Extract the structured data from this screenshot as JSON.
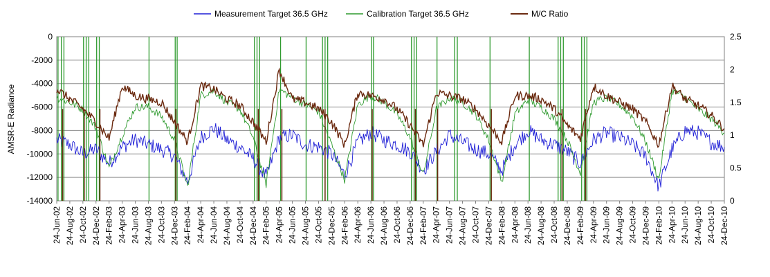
{
  "chart_data": {
    "type": "line",
    "title": "",
    "ylabel": "AMSR-E Radiance",
    "y2label": "",
    "ylim": [
      -14000,
      0
    ],
    "y2lim": [
      0,
      2.5
    ],
    "yticks": [
      "0",
      "-2000",
      "-4000",
      "-6000",
      "-8000",
      "-10000",
      "-12000",
      "-14000"
    ],
    "y2ticks": [
      "2.5",
      "2",
      "1.5",
      "1",
      "0.5",
      "0"
    ],
    "grid": "horizontal",
    "legend_position": "top",
    "x_dates": [
      "24-Jun-02",
      "24-Aug-02",
      "24-Oct-02",
      "24-Dec-02",
      "24-Feb-03",
      "24-Apr-03",
      "24-Jun-03",
      "24-Aug-03",
      "24-Oct-03",
      "24-Dec-03",
      "24-Feb-04",
      "24-Apr-04",
      "24-Jun-04",
      "24-Aug-04",
      "24-Oct-04",
      "24-Dec-04",
      "24-Feb-05",
      "24-Apr-05",
      "24-Jun-05",
      "24-Aug-05",
      "24-Oct-05",
      "24-Dec-05",
      "24-Feb-06",
      "24-Apr-06",
      "24-Jun-06",
      "24-Aug-06",
      "24-Oct-06",
      "24-Dec-06",
      "24-Feb-07",
      "24-Apr-07",
      "24-Jun-07",
      "24-Aug-07",
      "24-Oct-07",
      "24-Dec-07",
      "24-Feb-08",
      "24-Apr-08",
      "24-Jun-08",
      "24-Aug-08",
      "24-Oct-08",
      "24-Dec-08",
      "24-Feb-09",
      "24-Apr-09",
      "24-Jun-09",
      "24-Aug-09",
      "24-Oct-09",
      "24-Dec-09",
      "24-Feb-10",
      "24-Apr-10",
      "24-Jun-10",
      "24-Aug-10",
      "24-Oct-10",
      "24-Dec-10"
    ],
    "series": [
      {
        "name": "Measurement Target 36.5 GHz",
        "axis": "left",
        "color": "#1f1fd6",
        "values": [
          -8800,
          -9200,
          -10000,
          -9600,
          -10800,
          -9400,
          -8800,
          -9200,
          -9600,
          -10200,
          -12400,
          -8600,
          -7800,
          -8800,
          -9400,
          -10400,
          -12000,
          -8600,
          -8400,
          -9200,
          -9400,
          -10000,
          -11800,
          -9000,
          -8200,
          -8800,
          -9200,
          -9800,
          -11400,
          -9800,
          -8400,
          -9000,
          -9600,
          -10000,
          -11400,
          -9200,
          -8000,
          -8800,
          -9200,
          -9800,
          -10800,
          -8800,
          -8200,
          -8600,
          -9200,
          -10200,
          -12800,
          -9600,
          -8000,
          -8200,
          -9000,
          -9400
        ]
      },
      {
        "name": "Calibration Target 36.5 GHz",
        "axis": "left",
        "color": "#2e9a2e",
        "values": [
          -5200,
          -5600,
          -6200,
          -7800,
          -11200,
          -8400,
          -6000,
          -6000,
          -6800,
          -8800,
          -12800,
          -5000,
          -4600,
          -5600,
          -6200,
          -8600,
          -12600,
          -4500,
          -5200,
          -5800,
          -6400,
          -9200,
          -12200,
          -5800,
          -5000,
          -5600,
          -6600,
          -8600,
          -11800,
          -6200,
          -5200,
          -5600,
          -6600,
          -8800,
          -12400,
          -6600,
          -5400,
          -6000,
          -7000,
          -8800,
          -11600,
          -5600,
          -5200,
          -5800,
          -6800,
          -9000,
          -12200,
          -4600,
          -5200,
          -6200,
          -7000,
          -8200
        ]
      },
      {
        "name": "M/C Ratio",
        "axis": "right",
        "color": "#6b2a10",
        "values": [
          1.7,
          1.55,
          1.4,
          1.2,
          0.95,
          1.75,
          1.6,
          1.55,
          1.5,
          1.2,
          0.9,
          1.75,
          1.7,
          1.55,
          1.45,
          1.2,
          0.9,
          2.0,
          1.55,
          1.5,
          1.4,
          1.2,
          0.85,
          1.65,
          1.6,
          1.55,
          1.4,
          1.15,
          0.85,
          1.65,
          1.6,
          1.55,
          1.4,
          1.15,
          0.9,
          1.6,
          1.6,
          1.55,
          1.4,
          1.15,
          0.95,
          1.75,
          1.6,
          1.5,
          1.4,
          1.2,
          0.85,
          1.75,
          1.55,
          1.45,
          1.3,
          1.1
        ]
      }
    ],
    "spikes": {
      "note_series": "Calibration Target 36.5 GHz",
      "x_indices": [
        0.1,
        0.35,
        0.55,
        2.05,
        2.25,
        2.45,
        3.05,
        3.25,
        7.05,
        9.05,
        9.2,
        15.1,
        15.3,
        15.5,
        17.1,
        19.05,
        20.3,
        20.5,
        20.7,
        24.05,
        24.2,
        27.1,
        27.3,
        27.5,
        29.05,
        30.4,
        30.6,
        33.1,
        36.1,
        38.3,
        38.5,
        38.7,
        40.1,
        40.3,
        40.5
      ],
      "ratio_drops": [
        0.45,
        2.1,
        3.3,
        9.1,
        15.4,
        17.2,
        20.5,
        24.1,
        27.4,
        29.1,
        33.2,
        38.6,
        40.4
      ]
    }
  },
  "legend": {
    "items": [
      {
        "label": "Measurement Target 36.5 GHz",
        "color": "#1f1fd6"
      },
      {
        "label": "Calibration Target 36.5 GHz",
        "color": "#2e9a2e"
      },
      {
        "label": "M/C Ratio",
        "color": "#6b2a10"
      }
    ]
  }
}
